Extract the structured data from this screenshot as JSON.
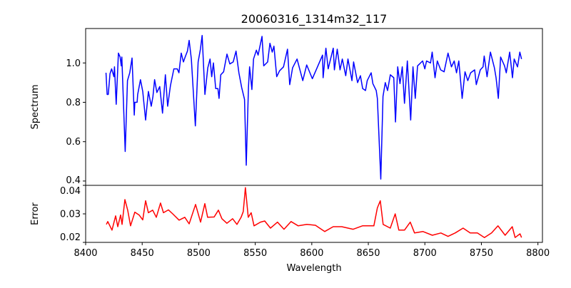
{
  "chart_data": [
    {
      "type": "line",
      "title": "20060316_1314m32_117",
      "xlabel": "",
      "ylabel": "Spectrum",
      "xlim": [
        8400,
        8804
      ],
      "ylim": [
        0.378,
        1.175
      ],
      "yticks": [
        0.4,
        0.6,
        0.8,
        1.0
      ],
      "ytick_labels": [
        "0.4",
        "0.6",
        "0.8",
        "1.0"
      ],
      "grid": false,
      "series": [
        {
          "name": "spectrum",
          "color": "#0000ff",
          "points": [
            [
              8418,
              0.95
            ],
            [
              8419,
              0.84
            ],
            [
              8420,
              0.84
            ],
            [
              8421.5,
              0.945
            ],
            [
              8423,
              0.97
            ],
            [
              8425,
              0.93
            ],
            [
              8425.5,
              0.98
            ],
            [
              8427,
              0.79
            ],
            [
              8429,
              1.05
            ],
            [
              8430.5,
              1.03
            ],
            [
              8431.5,
              0.985
            ],
            [
              8432,
              1.03
            ],
            [
              8435,
              0.55
            ],
            [
              8437,
              0.91
            ],
            [
              8439,
              0.95
            ],
            [
              8441,
              1.025
            ],
            [
              8443,
              0.735
            ],
            [
              8443.5,
              0.8
            ],
            [
              8445.5,
              0.8
            ],
            [
              8446,
              0.84
            ],
            [
              8448.5,
              0.915
            ],
            [
              8450.5,
              0.855
            ],
            [
              8453,
              0.71
            ],
            [
              8455.5,
              0.855
            ],
            [
              8458,
              0.78
            ],
            [
              8459.5,
              0.83
            ],
            [
              8461,
              0.915
            ],
            [
              8463,
              0.85
            ],
            [
              8465.5,
              0.88
            ],
            [
              8468,
              0.745
            ],
            [
              8470.5,
              0.94
            ],
            [
              8472.5,
              0.78
            ],
            [
              8475,
              0.885
            ],
            [
              8478,
              0.97
            ],
            [
              8481,
              0.97
            ],
            [
              8482.5,
              0.95
            ],
            [
              8484.5,
              1.05
            ],
            [
              8486.5,
              1.005
            ],
            [
              8488,
              1.03
            ],
            [
              8490,
              1.06
            ],
            [
              8491.5,
              1.115
            ],
            [
              8493.5,
              1.02
            ],
            [
              8497,
              0.68
            ],
            [
              8499.5,
              1.005
            ],
            [
              8501.5,
              1.07
            ],
            [
              8503,
              1.14
            ],
            [
              8505.5,
              0.84
            ],
            [
              8508,
              0.975
            ],
            [
              8510,
              1.02
            ],
            [
              8511.5,
              0.93
            ],
            [
              8513,
              1.0
            ],
            [
              8515,
              0.87
            ],
            [
              8517,
              0.87
            ],
            [
              8518,
              0.82
            ],
            [
              8519.5,
              0.94
            ],
            [
              8522,
              0.955
            ],
            [
              8525,
              1.045
            ],
            [
              8527.5,
              0.995
            ],
            [
              8530.5,
              1.005
            ],
            [
              8533,
              1.06
            ],
            [
              8535.5,
              0.95
            ],
            [
              8538,
              0.875
            ],
            [
              8540.5,
              0.815
            ],
            [
              8542,
              0.48
            ],
            [
              8544,
              0.875
            ],
            [
              8545,
              0.98
            ],
            [
              8547,
              0.865
            ],
            [
              8548.5,
              1.02
            ],
            [
              8551,
              1.065
            ],
            [
              8552.5,
              1.04
            ],
            [
              8556,
              1.135
            ],
            [
              8557.5,
              0.985
            ],
            [
              8561,
              1.005
            ],
            [
              8563,
              1.1
            ],
            [
              8565,
              1.055
            ],
            [
              8566.5,
              1.085
            ],
            [
              8569,
              0.93
            ],
            [
              8571.5,
              0.96
            ],
            [
              8575,
              0.98
            ],
            [
              8578.5,
              1.07
            ],
            [
              8580.5,
              0.89
            ],
            [
              8583,
              0.975
            ],
            [
              8587,
              1.02
            ],
            [
              8592,
              0.91
            ],
            [
              8595.5,
              0.99
            ],
            [
              8600.5,
              0.92
            ],
            [
              8605,
              0.98
            ],
            [
              8609.5,
              1.04
            ],
            [
              8610,
              0.925
            ],
            [
              8612.5,
              1.075
            ],
            [
              8614.5,
              0.97
            ],
            [
              8619,
              1.075
            ],
            [
              8620,
              0.965
            ],
            [
              8622.5,
              1.07
            ],
            [
              8625,
              0.965
            ],
            [
              8627,
              1.02
            ],
            [
              8630,
              0.935
            ],
            [
              8632,
              1.02
            ],
            [
              8635.5,
              0.91
            ],
            [
              8637,
              1.005
            ],
            [
              8640.5,
              0.9
            ],
            [
              8643,
              0.935
            ],
            [
              8645,
              0.87
            ],
            [
              8647.5,
              0.86
            ],
            [
              8649,
              0.91
            ],
            [
              8652.5,
              0.95
            ],
            [
              8654,
              0.895
            ],
            [
              8657,
              0.86
            ],
            [
              8658,
              0.82
            ],
            [
              8661,
              0.41
            ],
            [
              8663,
              0.83
            ],
            [
              8665,
              0.9
            ],
            [
              8667,
              0.86
            ],
            [
              8669.5,
              0.94
            ],
            [
              8672.5,
              0.925
            ],
            [
              8674,
              0.7
            ],
            [
              8676,
              0.98
            ],
            [
              8678,
              0.895
            ],
            [
              8680,
              0.98
            ],
            [
              8682,
              0.795
            ],
            [
              8684.5,
              1.01
            ],
            [
              8687.5,
              0.71
            ],
            [
              8689.5,
              0.98
            ],
            [
              8691.5,
              0.82
            ],
            [
              8693.5,
              0.985
            ],
            [
              8698,
              1.01
            ],
            [
              8700,
              0.97
            ],
            [
              8701.5,
              1.01
            ],
            [
              8705,
              1.0
            ],
            [
              8706.5,
              1.055
            ],
            [
              8709,
              0.925
            ],
            [
              8711,
              1.01
            ],
            [
              8714,
              0.965
            ],
            [
              8717,
              0.955
            ],
            [
              8720.5,
              1.05
            ],
            [
              8723.5,
              0.98
            ],
            [
              8726,
              1.01
            ],
            [
              8728,
              0.95
            ],
            [
              8730,
              1.01
            ],
            [
              8733,
              0.82
            ],
            [
              8735.5,
              0.955
            ],
            [
              8738,
              0.91
            ],
            [
              8740.5,
              0.95
            ],
            [
              8744,
              0.965
            ],
            [
              8745.5,
              0.89
            ],
            [
              8749,
              0.965
            ],
            [
              8751.5,
              0.98
            ],
            [
              8752.5,
              1.035
            ],
            [
              8755,
              0.93
            ],
            [
              8758,
              1.055
            ],
            [
              8761.5,
              0.975
            ],
            [
              8763,
              0.925
            ],
            [
              8765,
              0.82
            ],
            [
              8767,
              1.03
            ],
            [
              8770.5,
              0.985
            ],
            [
              8772,
              0.95
            ],
            [
              8775,
              1.055
            ],
            [
              8777.5,
              0.925
            ],
            [
              8779,
              1.02
            ],
            [
              8782,
              0.98
            ],
            [
              8784,
              1.055
            ],
            [
              8785.5,
              1.02
            ]
          ]
        }
      ]
    },
    {
      "type": "line",
      "title": "",
      "xlabel": "Wavelength",
      "ylabel": "Error",
      "xlim": [
        8400,
        8804
      ],
      "ylim": [
        0.02,
        0.04
      ],
      "xticks": [
        8400,
        8450,
        8500,
        8550,
        8600,
        8650,
        8700,
        8750,
        8800
      ],
      "xtick_labels": [
        "8400",
        "8450",
        "8500",
        "8550",
        "8600",
        "8650",
        "8700",
        "8750",
        "8800"
      ],
      "yticks": [
        0.02,
        0.03,
        0.04
      ],
      "ytick_labels": [
        "0.02",
        "0.03",
        "0.04"
      ],
      "grid": false,
      "series": [
        {
          "name": "error",
          "color": "#ff0000",
          "points": [
            [
              8418.3,
              0.0263
            ],
            [
              8419.6,
              0.0273
            ],
            [
              8423.3,
              0.0243
            ],
            [
              8426.5,
              0.0293
            ],
            [
              8428.4,
              0.0255
            ],
            [
              8430.9,
              0.0296
            ],
            [
              8432.2,
              0.0263
            ],
            [
              8434.7,
              0.035
            ],
            [
              8437.2,
              0.0313
            ],
            [
              8439.7,
              0.0258
            ],
            [
              8443.5,
              0.0306
            ],
            [
              8447.3,
              0.0296
            ],
            [
              8450.5,
              0.0279
            ],
            [
              8453,
              0.0346
            ],
            [
              8455.5,
              0.0304
            ],
            [
              8459.3,
              0.0313
            ],
            [
              8462.5,
              0.0288
            ],
            [
              8466.2,
              0.0338
            ],
            [
              8468.8,
              0.0304
            ],
            [
              8473.2,
              0.0314
            ],
            [
              8477,
              0.03
            ],
            [
              8482.6,
              0.0278
            ],
            [
              8487.7,
              0.0288
            ],
            [
              8491.5,
              0.0265
            ],
            [
              8497.2,
              0.0333
            ],
            [
              8501.6,
              0.0271
            ],
            [
              8505.4,
              0.0336
            ],
            [
              8507.9,
              0.0288
            ],
            [
              8513.6,
              0.0289
            ],
            [
              8517.4,
              0.0313
            ],
            [
              8520.5,
              0.0283
            ],
            [
              8524.9,
              0.0267
            ],
            [
              8530,
              0.0283
            ],
            [
              8533.8,
              0.0263
            ],
            [
              8537.5,
              0.0288
            ],
            [
              8539.4,
              0.0308
            ],
            [
              8541.3,
              0.0392
            ],
            [
              8543.8,
              0.0288
            ],
            [
              8546.4,
              0.0304
            ],
            [
              8548.9,
              0.0258
            ],
            [
              8554.6,
              0.0271
            ],
            [
              8558.4,
              0.0275
            ],
            [
              8563.4,
              0.025
            ],
            [
              8569.7,
              0.0271
            ],
            [
              8575.4,
              0.0246
            ],
            [
              8581.7,
              0.0273
            ],
            [
              8588,
              0.0258
            ],
            [
              8595.6,
              0.0263
            ],
            [
              8603.2,
              0.026
            ],
            [
              8611.4,
              0.0238
            ],
            [
              8618.9,
              0.0255
            ],
            [
              8626.5,
              0.0255
            ],
            [
              8636.6,
              0.0246
            ],
            [
              8644.8,
              0.0258
            ],
            [
              8651.1,
              0.0258
            ],
            [
              8654.9,
              0.0258
            ],
            [
              8658,
              0.0321
            ],
            [
              8660.6,
              0.0346
            ],
            [
              8663.1,
              0.0263
            ],
            [
              8669.4,
              0.025
            ],
            [
              8673.8,
              0.03
            ],
            [
              8677,
              0.0243
            ],
            [
              8682,
              0.0243
            ],
            [
              8687.1,
              0.0271
            ],
            [
              8690.9,
              0.0233
            ],
            [
              8698.4,
              0.0238
            ],
            [
              8706.6,
              0.0225
            ],
            [
              8714.2,
              0.0233
            ],
            [
              8720.5,
              0.0221
            ],
            [
              8726.8,
              0.0233
            ],
            [
              8733.8,
              0.025
            ],
            [
              8740.1,
              0.0233
            ],
            [
              8746.4,
              0.0233
            ],
            [
              8752.7,
              0.0217
            ],
            [
              8759,
              0.0233
            ],
            [
              8764.7,
              0.0258
            ],
            [
              8771,
              0.0225
            ],
            [
              8777.3,
              0.0255
            ],
            [
              8779.8,
              0.0217
            ],
            [
              8784.2,
              0.023
            ],
            [
              8785.5,
              0.0217
            ]
          ]
        }
      ]
    }
  ]
}
